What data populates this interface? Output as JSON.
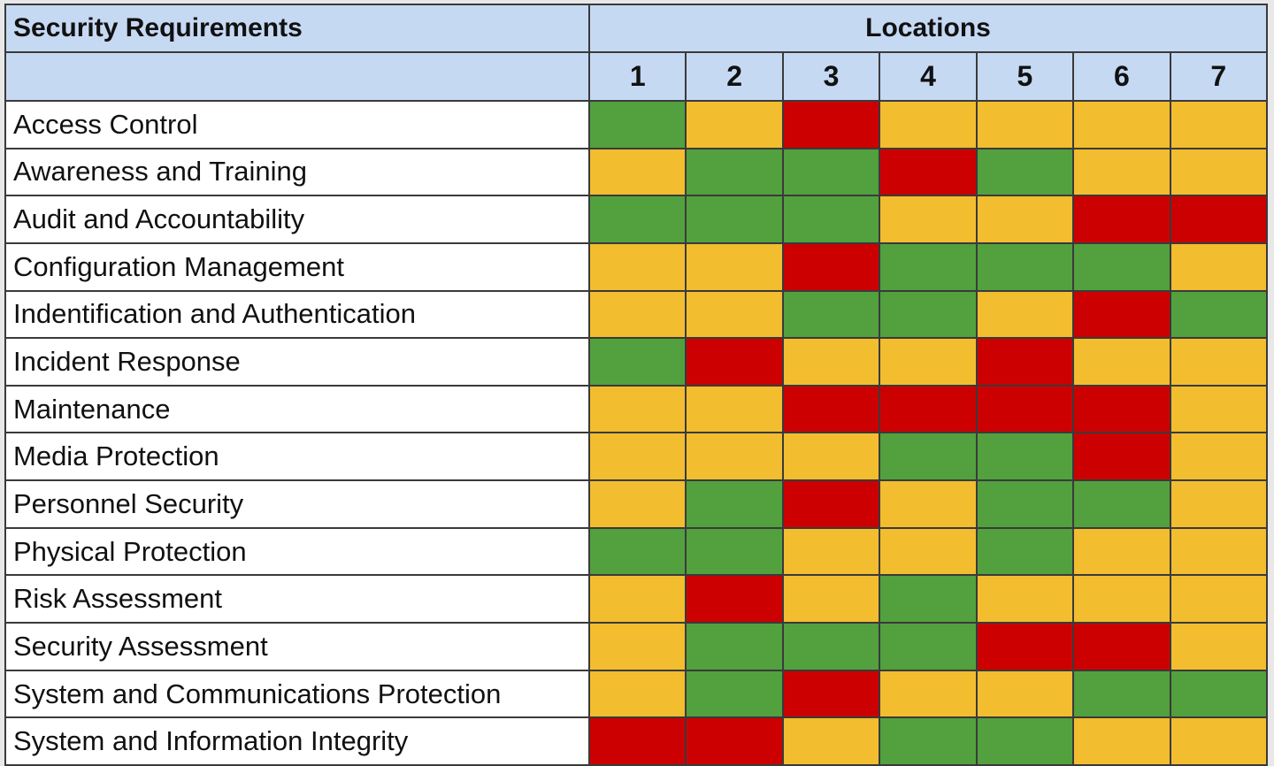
{
  "chart_data": {
    "type": "heatmap",
    "row_header": "Security Requirements",
    "column_group_header": "Locations",
    "columns": [
      "1",
      "2",
      "3",
      "4",
      "5",
      "6",
      "7"
    ],
    "legend_colors": {
      "G": "#52a03e",
      "Y": "#f2bd2e",
      "R": "#cc0000"
    },
    "rows": [
      {
        "label": "Access Control",
        "values": [
          "G",
          "Y",
          "R",
          "Y",
          "Y",
          "Y",
          "Y"
        ]
      },
      {
        "label": "Awareness and Training",
        "values": [
          "Y",
          "G",
          "G",
          "R",
          "G",
          "Y",
          "Y"
        ]
      },
      {
        "label": "Audit and Accountability",
        "values": [
          "G",
          "G",
          "G",
          "Y",
          "Y",
          "R",
          "R"
        ]
      },
      {
        "label": "Configuration Management",
        "values": [
          "Y",
          "Y",
          "R",
          "G",
          "G",
          "G",
          "Y"
        ]
      },
      {
        "label": "Indentification and Authentication",
        "values": [
          "Y",
          "Y",
          "G",
          "G",
          "Y",
          "R",
          "G"
        ]
      },
      {
        "label": "Incident Response",
        "values": [
          "G",
          "R",
          "Y",
          "Y",
          "R",
          "Y",
          "Y"
        ]
      },
      {
        "label": "Maintenance",
        "values": [
          "Y",
          "Y",
          "R",
          "R",
          "R",
          "R",
          "Y"
        ]
      },
      {
        "label": "Media Protection",
        "values": [
          "Y",
          "Y",
          "Y",
          "G",
          "G",
          "R",
          "Y"
        ]
      },
      {
        "label": "Personnel Security",
        "values": [
          "Y",
          "G",
          "R",
          "Y",
          "G",
          "G",
          "Y"
        ]
      },
      {
        "label": "Physical Protection",
        "values": [
          "G",
          "G",
          "Y",
          "Y",
          "G",
          "Y",
          "Y"
        ]
      },
      {
        "label": "Risk Assessment",
        "values": [
          "Y",
          "R",
          "Y",
          "G",
          "Y",
          "Y",
          "Y"
        ]
      },
      {
        "label": "Security Assessment",
        "values": [
          "Y",
          "G",
          "G",
          "G",
          "R",
          "R",
          "Y"
        ]
      },
      {
        "label": "System and Communications Protection",
        "values": [
          "Y",
          "G",
          "R",
          "Y",
          "Y",
          "G",
          "G"
        ]
      },
      {
        "label": "System and Information Integrity",
        "values": [
          "R",
          "R",
          "Y",
          "G",
          "G",
          "Y",
          "Y"
        ]
      }
    ]
  },
  "header_bg": "#c6d9f3"
}
